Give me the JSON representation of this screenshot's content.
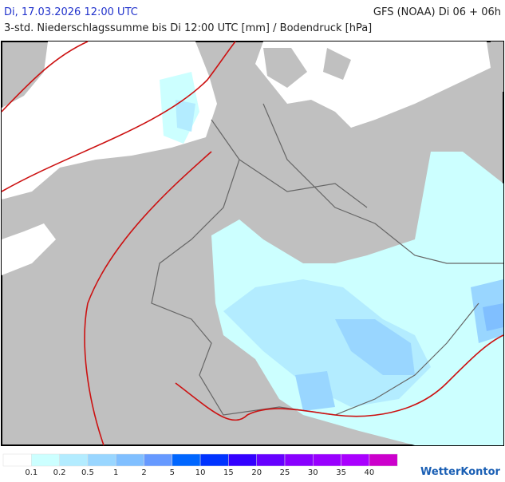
{
  "header": {
    "title_left": "Di, 17.03.2026 12:00 UTC",
    "title_right": "GFS (NOAA) Di 06 + 06h",
    "subtitle": "3-std. Niederschlagssumme bis Di 12:00 UTC [mm] / Bodendruck [hPa]"
  },
  "legend": {
    "colors": [
      "#ffffff",
      "#ccffff",
      "#b3ecff",
      "#99d6ff",
      "#80bfff",
      "#6699ff",
      "#0066ff",
      "#0033ff",
      "#3300ff",
      "#6600ff",
      "#8800ff",
      "#9900ff",
      "#aa00ff",
      "#cc00cc"
    ],
    "thresholds": [
      0.1,
      0.2,
      0.5,
      1,
      2,
      5,
      10,
      15,
      20,
      25,
      30,
      35,
      40
    ]
  },
  "logo": "WetterKontor"
}
